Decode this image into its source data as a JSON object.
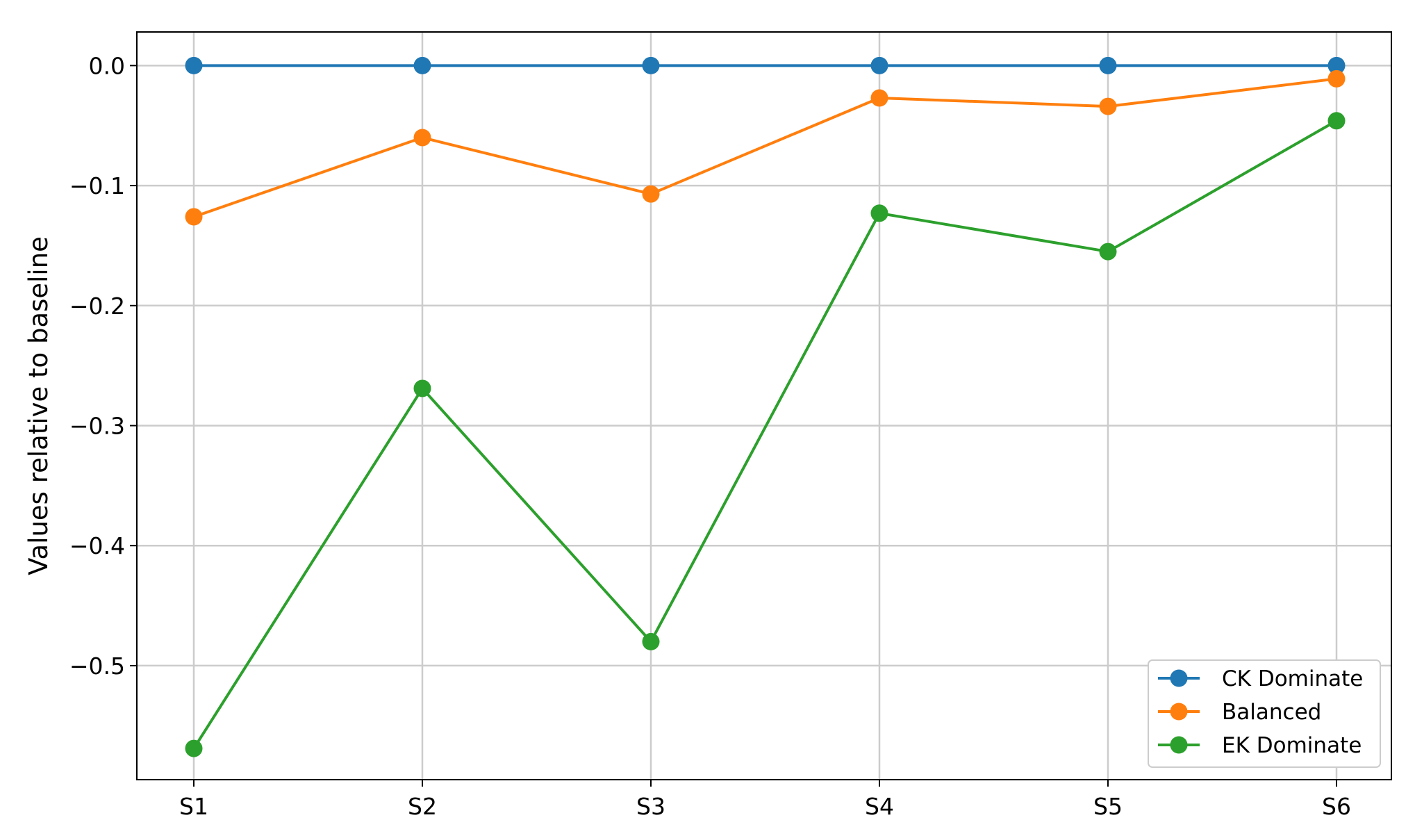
{
  "chart_data": {
    "type": "line",
    "categories": [
      "S1",
      "S2",
      "S3",
      "S4",
      "S5",
      "S6"
    ],
    "ylabel": "Values relative to baseline",
    "xlabel": "",
    "ylim": [
      -0.595,
      0.028
    ],
    "yticks": [
      0.0,
      -0.1,
      -0.2,
      -0.3,
      -0.4,
      -0.5
    ],
    "ytick_labels": [
      "0.0",
      "−0.1",
      "−0.2",
      "−0.3",
      "−0.4",
      "−0.5"
    ],
    "grid": true,
    "legend_position": "lower-right",
    "series": [
      {
        "name": "CK Dominate",
        "color": "#1f77b4",
        "values": [
          0.0,
          0.0,
          0.0,
          0.0,
          0.0,
          0.0
        ]
      },
      {
        "name": "Balanced",
        "color": "#ff7f0e",
        "values": [
          -0.126,
          -0.06,
          -0.107,
          -0.027,
          -0.034,
          -0.011
        ]
      },
      {
        "name": "EK Dominate",
        "color": "#2ca02c",
        "values": [
          -0.569,
          -0.269,
          -0.48,
          -0.123,
          -0.155,
          -0.046
        ]
      }
    ]
  }
}
